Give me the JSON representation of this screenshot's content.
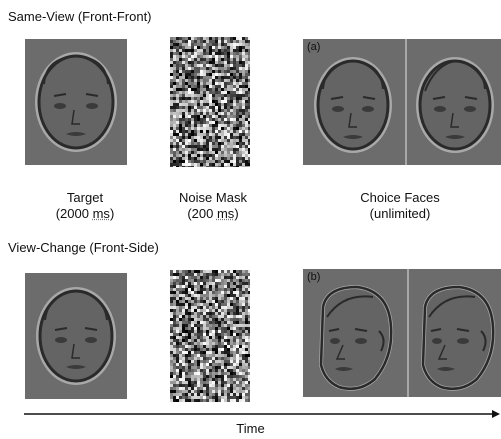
{
  "rows": [
    {
      "title": "Same-View (Front-Front)",
      "choice_label": "(a)"
    },
    {
      "title": "View-Change (Front-Side)",
      "choice_label": "(b)"
    }
  ],
  "captions": {
    "target": {
      "line1": "Target",
      "line2_value": "(2000 ",
      "line2_unit": "ms",
      "line2_end": ")"
    },
    "noise": {
      "line1": "Noise Mask",
      "line2_value": "(200 ",
      "line2_unit": "ms",
      "line2_end": ")"
    },
    "choice": {
      "line1": "Choice Faces",
      "line2": "(unlimited)"
    }
  },
  "timeline": {
    "label": "Time"
  },
  "colors": {
    "panel_bg": "#6c6c6c",
    "face_fill": "#646464",
    "face_outline": "#2a2a2a",
    "face_highlight": "#a8a8a8"
  }
}
